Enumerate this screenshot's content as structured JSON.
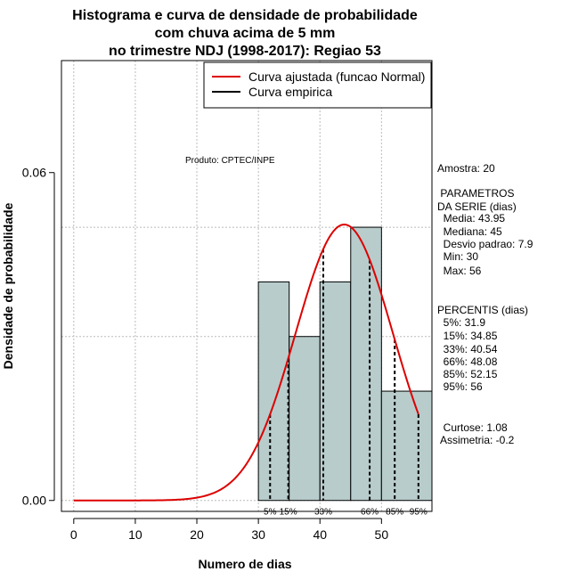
{
  "chart_data": {
    "type": "histogram",
    "title_lines": [
      "Histograma e curva de densidade de probabilidade",
      "com chuva acima de 5 mm",
      "no trimestre NDJ (1998-2017): Regiao 53"
    ],
    "xlabel": "Numero de dias",
    "ylabel": "Densidade de probabilidade",
    "xlim": [
      -2,
      58.2
    ],
    "ylim": [
      -0.002,
      0.0805
    ],
    "x_ticks": [
      0,
      10,
      20,
      30,
      40,
      50
    ],
    "y_ticks": [
      0.0,
      0.06
    ],
    "y_tick_labels": [
      "0.00",
      "0.06"
    ],
    "grid": true,
    "bins": [
      {
        "x0": 30,
        "x1": 35,
        "density": 0.04
      },
      {
        "x0": 35,
        "x1": 40,
        "density": 0.03
      },
      {
        "x0": 40,
        "x1": 45,
        "density": 0.04
      },
      {
        "x0": 45,
        "x1": 50,
        "density": 0.05
      },
      {
        "x0": 50,
        "x1": 58.2,
        "density": 0.02
      }
    ],
    "bar_color": "#b8cccc",
    "normal_fit": {
      "mean": 43.95,
      "sd": 7.9,
      "x_from": 0,
      "x_to": 56,
      "color": "#dd0000"
    },
    "percentile_lines": [
      {
        "label": "5%",
        "x": 31.9
      },
      {
        "label": "15%",
        "x": 34.85
      },
      {
        "label": "33%",
        "x": 40.54
      },
      {
        "label": "66%",
        "x": 48.08
      },
      {
        "label": "85%",
        "x": 52.15
      },
      {
        "label": "95%",
        "x": 56
      }
    ],
    "legend": {
      "placement": "top-right",
      "items": [
        {
          "label": "Curva ajustada (funcao Normal)",
          "color": "#dd0000"
        },
        {
          "label": "Curva empirica",
          "color": "#000000"
        }
      ]
    },
    "annotation_product": "Produto: CPTEC/INPE",
    "stats_lines": [
      "Amostra: 20",
      " PARAMETROS",
      "DA SERIE (dias)",
      "  Media: 43.95",
      "  Mediana: 45",
      "  Desvio padrao: 7.9",
      "  Min: 30",
      "  Max: 56",
      "PERCENTIS (dias)",
      "  5%: 31.9",
      "  15%: 34.85",
      "  33%: 40.54",
      "  66%: 48.08",
      "  85%: 52.15",
      "  95%: 56",
      "  Curtose: 1.08",
      "Assimetria: -0.2"
    ]
  }
}
